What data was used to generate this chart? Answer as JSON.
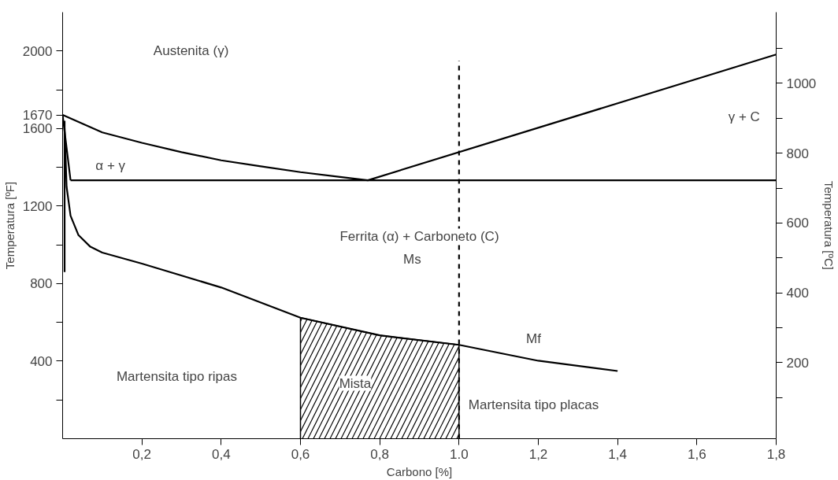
{
  "chart_data": {
    "type": "line",
    "xlabel": "Carbono [%]",
    "ylabel": "Temperatura [ºF]",
    "y2label": "Temperatura [ºC]",
    "xlim": [
      0,
      1.8
    ],
    "xticks": [
      {
        "value": 0.2,
        "label": "0,2"
      },
      {
        "value": 0.4,
        "label": "0,4"
      },
      {
        "value": 0.6,
        "label": "0,6"
      },
      {
        "value": 0.8,
        "label": "0,8"
      },
      {
        "value": 1.0,
        "label": "1.0"
      },
      {
        "value": 1.2,
        "label": "1,2"
      },
      {
        "value": 1.4,
        "label": "1,4"
      },
      {
        "value": 1.6,
        "label": "1,6"
      },
      {
        "value": 1.8,
        "label": "1,8"
      }
    ],
    "ylim": [
      0,
      2200
    ],
    "yticks": [
      {
        "value": 200,
        "label": null
      },
      400,
      {
        "value": 600,
        "label": null
      },
      800,
      {
        "value": 1000,
        "label": null
      },
      1200,
      {
        "value": 1400,
        "label": null
      },
      1600,
      1670,
      {
        "value": 1800,
        "label": null
      },
      2000
    ],
    "y2lim": [
      -18,
      1204
    ],
    "y2ticks": [
      {
        "value": 100,
        "label": null
      },
      200,
      {
        "value": 300,
        "label": null
      },
      400,
      {
        "value": 500,
        "label": null
      },
      600,
      {
        "value": 700,
        "label": null
      },
      800,
      {
        "value": 900,
        "label": null
      },
      1000,
      {
        "value": 1100,
        "label": null
      }
    ],
    "grid": false,
    "line_style": "solid",
    "series": [
      {
        "color": "#000000",
        "x": [
          0,
          0.1,
          0.2,
          0.3,
          0.4,
          0.5,
          0.6,
          0.7,
          0.77,
          1.8
        ],
        "values": [
          1670,
          1580,
          1526,
          1478,
          1436,
          1405,
          1375,
          1350,
          1333,
          1982
        ]
      },
      {
        "color": "#000000",
        "x": [
          0.02,
          1.8
        ],
        "values": [
          1333,
          1333
        ]
      },
      {
        "color": "#000000",
        "x": [
          0,
          0.01,
          0.02
        ],
        "values": [
          1670,
          1500,
          1333
        ]
      },
      {
        "color": "#000000",
        "x": [
          0.005,
          0.005
        ],
        "values": [
          1640,
          860
        ]
      },
      {
        "color": "#000000",
        "x": [
          0.005,
          0.01,
          0.02,
          0.04,
          0.07,
          0.1,
          0.2,
          0.4,
          0.6,
          0.8,
          1.0,
          1.2,
          1.4
        ],
        "values": [
          1600,
          1300,
          1150,
          1050,
          990,
          960,
          903,
          780,
          624,
          533,
          484,
          402,
          349
        ]
      },
      {
        "color": "#000000",
        "line_style": "dashed",
        "x": [
          1.0,
          1.0
        ],
        "values": [
          0,
          1950
        ]
      },
      {
        "type": "area",
        "color": "#000000",
        "x": [
          0.6,
          0.8,
          1.0
        ],
        "values": [
          624,
          533,
          484
        ]
      }
    ],
    "annotations": [
      "Austenita (γ)",
      "α + γ",
      "γ + C",
      "Ferrita (α) + Carboneto (C)",
      "Ms",
      "Mf",
      "Martensita tipo ripas",
      "Mista",
      "Martensita tipo placas"
    ]
  }
}
